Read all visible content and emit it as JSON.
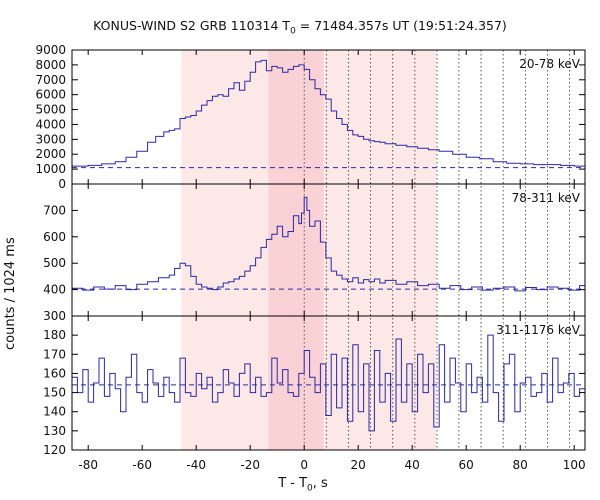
{
  "chart_data": {
    "type": "line",
    "title": {
      "main": "KONUS-WIND S2 GRB 110314 T",
      "sub": "0",
      "rest": " = 71484.357s UT (19:51:24.357)"
    },
    "xlabel": {
      "main": "T - T",
      "sub": "0",
      "rest": ", s"
    },
    "ylabel": "counts / 1024 ms",
    "xlim": [
      -86,
      104
    ],
    "x_ticks": [
      -80,
      -60,
      -40,
      -20,
      0,
      20,
      40,
      60,
      80,
      100
    ],
    "shaded_intervals": [
      {
        "x0": -45.5,
        "x1": 48.9,
        "color": "#fde8e8"
      },
      {
        "x0": -13.3,
        "x1": 7.2,
        "color": "#fad2d6"
      }
    ],
    "dotted_markers": [
      0,
      8.2,
      16.4,
      24.6,
      32.8,
      41.0,
      49.2,
      57.3,
      65.5,
      73.7,
      81.9,
      90.1,
      98.3
    ],
    "series_color": "#2b28a6",
    "grid": false,
    "panels": [
      {
        "name": "20-78 keV",
        "ylim": [
          0,
          9000
        ],
        "y_ticks": [
          0,
          1000,
          2000,
          3000,
          4000,
          5000,
          6000,
          7000,
          8000,
          9000
        ],
        "background": 1100,
        "x": [
          -86,
          -80,
          -75,
          -70,
          -66,
          -62,
          -58,
          -55,
          -52,
          -50,
          -48,
          -46,
          -44,
          -42,
          -40,
          -38,
          -36,
          -34,
          -32,
          -30,
          -28,
          -26,
          -24,
          -22,
          -20,
          -18,
          -16,
          -14,
          -12,
          -10,
          -8,
          -6,
          -4,
          -2,
          0,
          2,
          4,
          6,
          8,
          10,
          12,
          14,
          16,
          18,
          20,
          22,
          24,
          26,
          28,
          30,
          34,
          38,
          42,
          46,
          50,
          55,
          60,
          65,
          70,
          75,
          80,
          85,
          90,
          95,
          100,
          104
        ],
        "y": [
          1200,
          1250,
          1350,
          1500,
          1800,
          2200,
          2800,
          3200,
          3500,
          3600,
          3700,
          4400,
          4500,
          4600,
          4900,
          5300,
          5600,
          5900,
          6000,
          5900,
          6400,
          6800,
          6300,
          6900,
          7500,
          8200,
          8300,
          7600,
          7900,
          7800,
          7500,
          7700,
          7900,
          8000,
          7700,
          7000,
          6400,
          6000,
          5700,
          4900,
          4400,
          4000,
          3600,
          3300,
          3200,
          3000,
          2900,
          2850,
          2800,
          2700,
          2600,
          2500,
          2400,
          2300,
          2200,
          2000,
          1800,
          1700,
          1500,
          1400,
          1350,
          1300,
          1300,
          1250,
          1200,
          1150
        ]
      },
      {
        "name": "78-311 keV",
        "ylim": [
          300,
          800
        ],
        "y_ticks": [
          300,
          400,
          500,
          600,
          700
        ],
        "background": 402,
        "x": [
          -86,
          -82,
          -78,
          -74,
          -70,
          -66,
          -62,
          -58,
          -54,
          -50,
          -48,
          -46,
          -44,
          -42,
          -40,
          -38,
          -36,
          -34,
          -32,
          -30,
          -28,
          -26,
          -24,
          -22,
          -20,
          -18,
          -16,
          -14,
          -12,
          -10,
          -8,
          -6,
          -4,
          -2,
          -1,
          0,
          1,
          2,
          4,
          6,
          8,
          10,
          12,
          14,
          16,
          18,
          20,
          22,
          24,
          26,
          28,
          30,
          34,
          38,
          42,
          46,
          50,
          54,
          58,
          62,
          66,
          70,
          74,
          78,
          82,
          86,
          90,
          94,
          98,
          102,
          104
        ],
        "y": [
          405,
          398,
          410,
          402,
          415,
          400,
          420,
          430,
          445,
          455,
          480,
          500,
          490,
          450,
          420,
          410,
          405,
          400,
          410,
          425,
          430,
          440,
          450,
          470,
          490,
          520,
          560,
          590,
          610,
          640,
          600,
          620,
          680,
          650,
          690,
          750,
          700,
          640,
          660,
          580,
          520,
          470,
          455,
          440,
          430,
          445,
          425,
          438,
          430,
          440,
          425,
          435,
          420,
          430,
          415,
          420,
          405,
          415,
          400,
          410,
          398,
          405,
          410,
          395,
          408,
          400,
          410,
          405,
          398,
          415,
          405
        ]
      },
      {
        "name": "311-1176 keV",
        "ylim": [
          120,
          190
        ],
        "y_ticks": [
          120,
          130,
          140,
          150,
          160,
          170,
          180
        ],
        "background": 154,
        "x": [
          -86,
          -84,
          -82,
          -80,
          -78,
          -76,
          -74,
          -72,
          -70,
          -68,
          -66,
          -64,
          -62,
          -60,
          -58,
          -56,
          -54,
          -52,
          -50,
          -48,
          -46,
          -44,
          -42,
          -40,
          -38,
          -36,
          -34,
          -32,
          -30,
          -28,
          -26,
          -24,
          -22,
          -20,
          -18,
          -16,
          -14,
          -12,
          -10,
          -8,
          -6,
          -4,
          -2,
          0,
          2,
          4,
          6,
          8,
          10,
          12,
          14,
          16,
          18,
          20,
          22,
          24,
          26,
          28,
          30,
          32,
          34,
          36,
          38,
          40,
          42,
          44,
          46,
          48,
          50,
          52,
          54,
          56,
          58,
          60,
          62,
          64,
          66,
          68,
          70,
          72,
          74,
          76,
          78,
          80,
          82,
          84,
          86,
          88,
          90,
          92,
          94,
          96,
          98,
          100,
          102,
          104
        ],
        "y": [
          158,
          150,
          162,
          145,
          155,
          168,
          148,
          160,
          152,
          140,
          158,
          170,
          150,
          145,
          162,
          155,
          148,
          158,
          150,
          145,
          168,
          150,
          148,
          160,
          152,
          158,
          145,
          150,
          162,
          155,
          148,
          160,
          165,
          150,
          158,
          148,
          150,
          168,
          155,
          162,
          150,
          148,
          160,
          172,
          158,
          150,
          165,
          138,
          170,
          142,
          168,
          135,
          175,
          140,
          165,
          130,
          172,
          145,
          160,
          135,
          178,
          145,
          165,
          140,
          170,
          150,
          165,
          132,
          175,
          145,
          168,
          155,
          140,
          165,
          150,
          158,
          145,
          180,
          150,
          135,
          165,
          170,
          140,
          155,
          158,
          148,
          150,
          160,
          145,
          168,
          150,
          155,
          160,
          148,
          152,
          158
        ]
      }
    ]
  }
}
